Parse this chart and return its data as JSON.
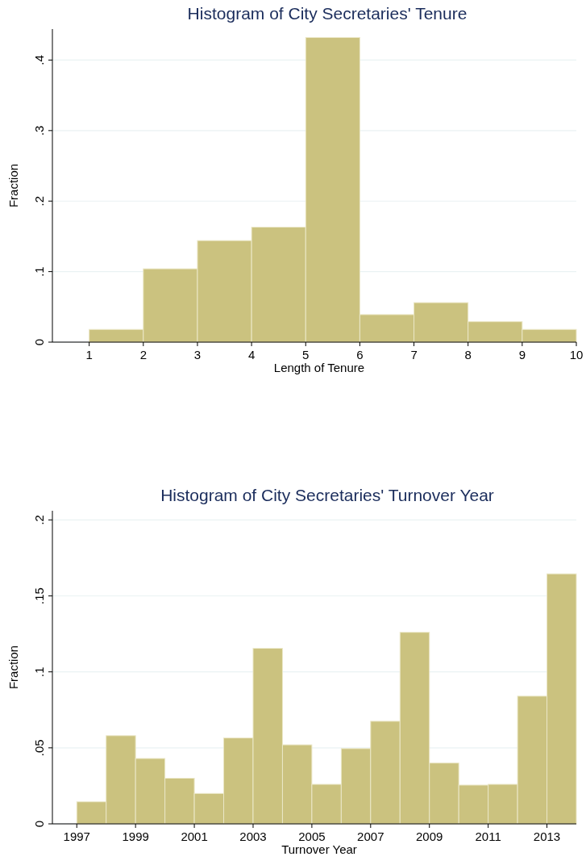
{
  "chart_data": [
    {
      "type": "histogram",
      "title": "Histogram of City Secretaries' Tenure",
      "xlabel": "Length of Tenure",
      "ylabel": "Fraction",
      "color": "#cbc27f",
      "grid": "y",
      "bins": [
        1,
        2,
        3,
        4,
        5,
        6,
        7,
        8,
        9,
        10
      ],
      "values": [
        0.018,
        0.104,
        0.144,
        0.163,
        0.432,
        0.039,
        0.056,
        0.029,
        0.018
      ],
      "xlim": [
        0.32,
        10
      ],
      "xticks": [
        1,
        2,
        3,
        4,
        5,
        6,
        7,
        8,
        9,
        10
      ],
      "ylim": [
        0,
        0.444
      ],
      "yticks": [
        0,
        {
          "value": 0.1,
          "label": ".1"
        },
        {
          "value": 0.2,
          "label": ".2"
        },
        {
          "value": 0.3,
          "label": ".3"
        },
        {
          "value": 0.4,
          "label": ".4"
        }
      ]
    },
    {
      "type": "histogram",
      "title": "Histogram of City Secretaries' Turnover Year",
      "xlabel": "Turnover Year",
      "ylabel": "Fraction",
      "color": "#cbc27f",
      "grid": "y",
      "bins": [
        1997,
        1998,
        1999,
        2000,
        2001,
        2002,
        2003,
        2004,
        2005,
        2006,
        2007,
        2008,
        2009,
        2010,
        2011,
        2012,
        2013,
        2014
      ],
      "values": [
        0.0145,
        0.058,
        0.043,
        0.03,
        0.02,
        0.0565,
        0.1155,
        0.052,
        0.026,
        0.0495,
        0.0675,
        0.126,
        0.04,
        0.0255,
        0.026,
        0.084,
        0.1645
      ],
      "xlim": [
        1996.17,
        2014
      ],
      "xticks": [
        1997,
        1999,
        2001,
        2003,
        2005,
        2007,
        2009,
        2011,
        2013
      ],
      "ylim": [
        0,
        0.206
      ],
      "yticks": [
        0,
        {
          "value": 0.05,
          "label": ".05"
        },
        {
          "value": 0.1,
          "label": ".1"
        },
        {
          "value": 0.15,
          "label": ".15"
        },
        {
          "value": 0.2,
          "label": ".2"
        }
      ]
    }
  ]
}
